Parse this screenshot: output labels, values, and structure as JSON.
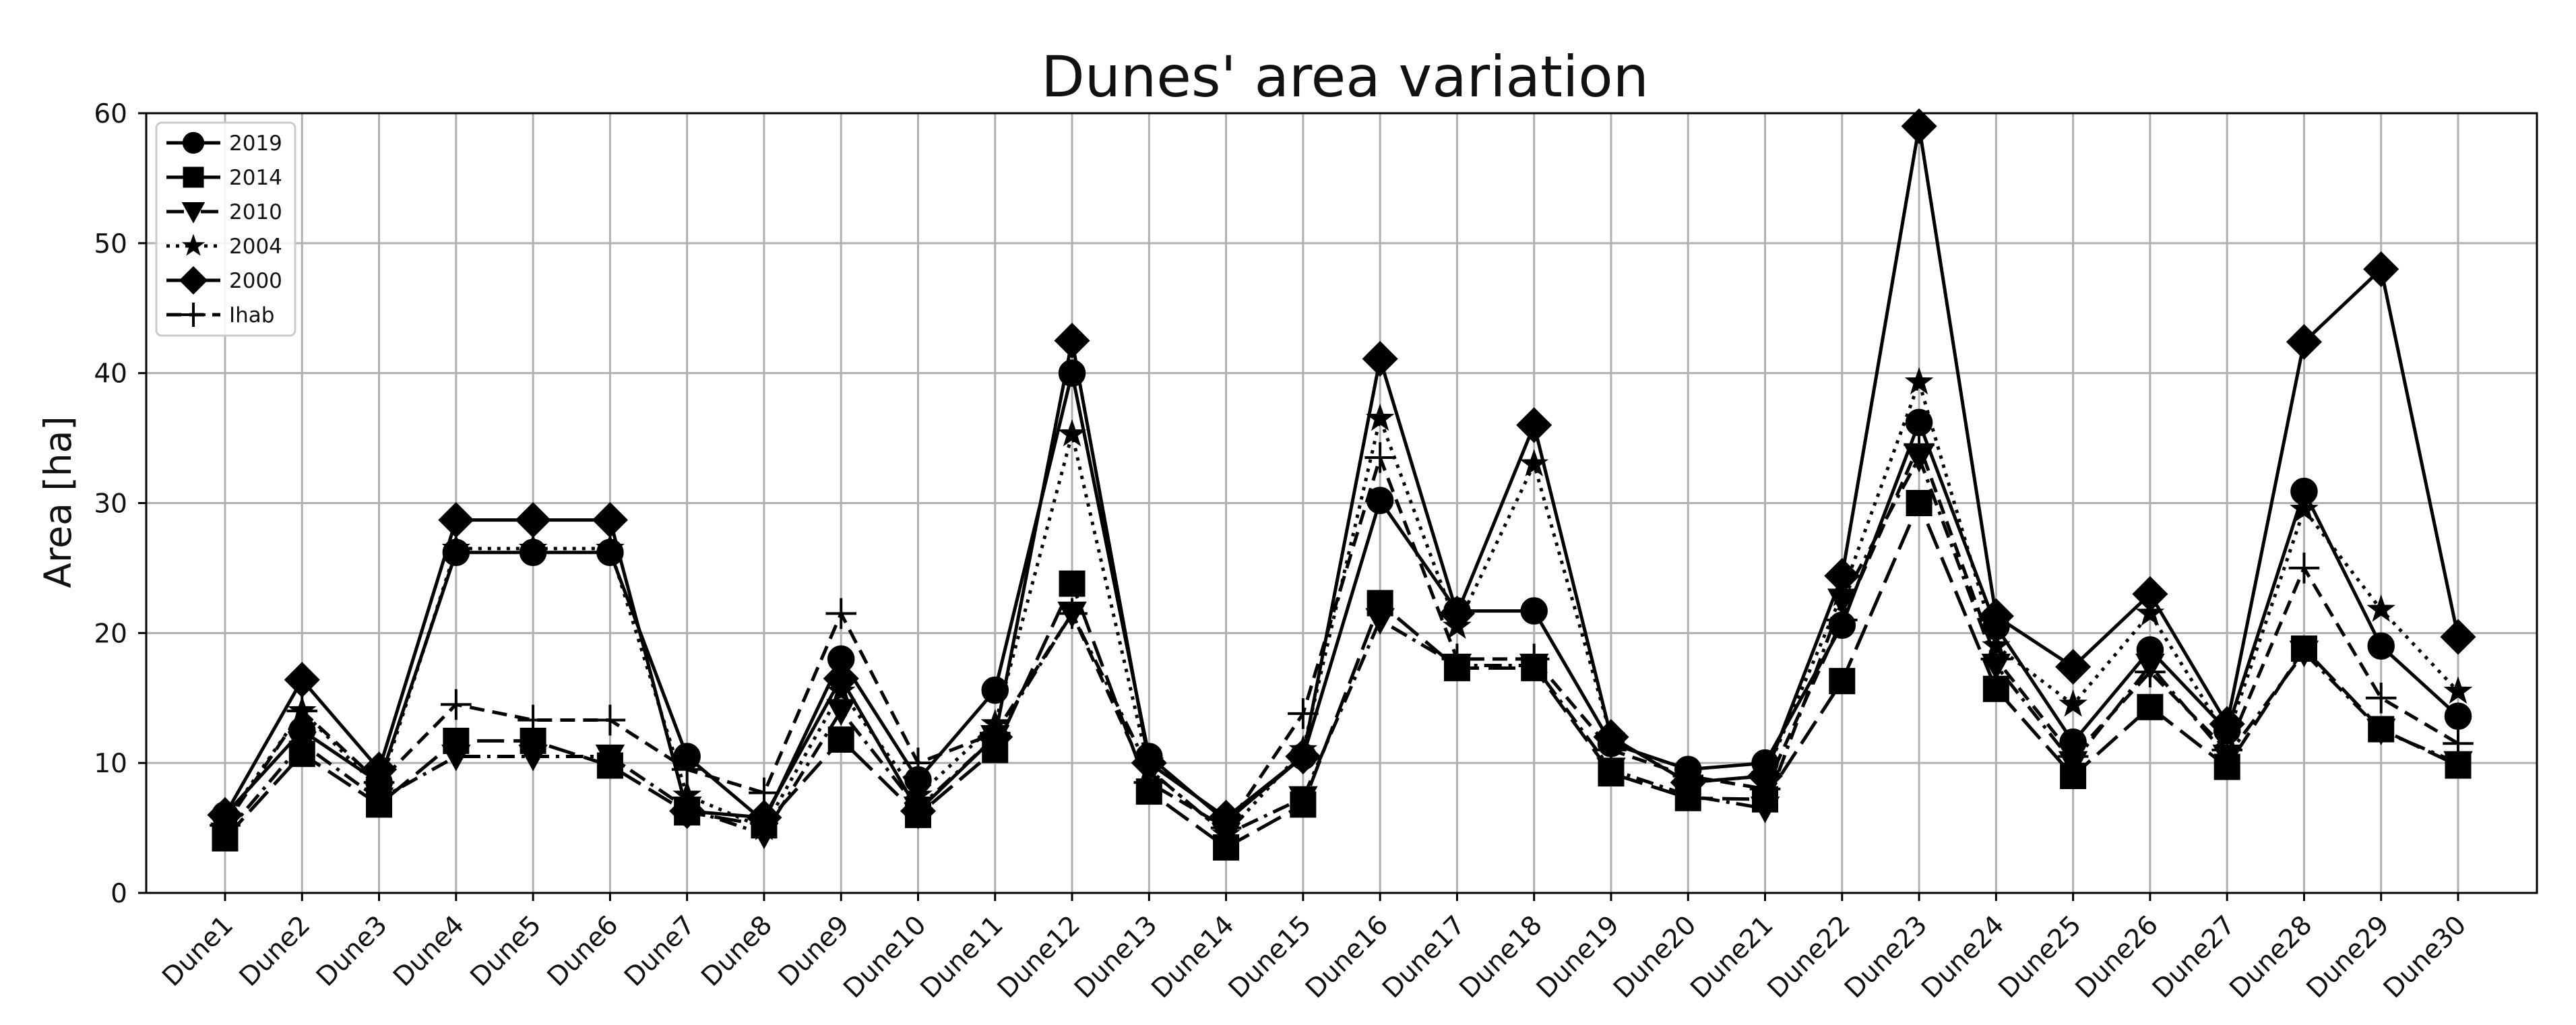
{
  "chart_data": {
    "type": "line",
    "title": "Dunes' area variation",
    "xlabel": "",
    "ylabel": "Area [ha]",
    "ylim": [
      0,
      60
    ],
    "yticks": [
      0,
      10,
      20,
      30,
      40,
      50,
      60
    ],
    "grid": true,
    "legend_position": "top-left",
    "categories": [
      "Dune1",
      "Dune2",
      "Dune3",
      "Dune4",
      "Dune5",
      "Dune6",
      "Dune7",
      "Dune8",
      "Dune9",
      "Dune10",
      "Dune11",
      "Dune12",
      "Dune13",
      "Dune14",
      "Dune15",
      "Dune16",
      "Dune17",
      "Dune18",
      "Dune19",
      "Dune20",
      "Dune21",
      "Dune22",
      "Dune23",
      "Dune24",
      "Dune25",
      "Dune26",
      "Dune27",
      "Dune28",
      "Dune29",
      "Dune30"
    ],
    "series": [
      {
        "name": "2019",
        "marker": "circle",
        "dash": "solid",
        "color": "#000000",
        "values": [
          6,
          12.5,
          8.5,
          26.2,
          26.2,
          26.2,
          10.5,
          5.5,
          18,
          8.7,
          15.6,
          40,
          10.5,
          5.5,
          10.5,
          30.2,
          21.7,
          21.7,
          11.5,
          9.5,
          10,
          20.6,
          36.2,
          20.5,
          11.6,
          18.7,
          12.5,
          30.9,
          19,
          13.6
        ]
      },
      {
        "name": "2014",
        "marker": "square",
        "dash": "long-dash",
        "color": "#000000",
        "values": [
          4.2,
          10.7,
          6.8,
          11.7,
          11.7,
          9.8,
          6.2,
          5.2,
          11.8,
          6,
          11,
          23.8,
          7.8,
          3.5,
          6.8,
          22.3,
          17.3,
          17.3,
          9.2,
          7.3,
          7.2,
          16.3,
          30,
          15.7,
          9,
          14.3,
          9.7,
          18.8,
          12.6,
          9.8
        ]
      },
      {
        "name": "2010",
        "marker": "triangle-down",
        "dash": "dash-dot",
        "color": "#000000",
        "values": [
          4.5,
          11.5,
          7.2,
          10.5,
          10.5,
          10.5,
          6.5,
          4.5,
          14,
          6.5,
          12,
          21.5,
          9.5,
          4.5,
          7.3,
          21,
          17.5,
          17.5,
          9.5,
          7.5,
          6.5,
          22.5,
          33.5,
          17.5,
          10,
          17.5,
          10.5,
          18.5,
          12.5,
          10
        ]
      },
      {
        "name": "2004",
        "marker": "star",
        "dash": "dotted",
        "color": "#000000",
        "values": [
          5.5,
          14,
          8,
          26.5,
          26.5,
          26.5,
          7.5,
          5,
          15.5,
          7.5,
          13,
          35.3,
          9.5,
          4.5,
          11,
          36.5,
          20.5,
          33,
          12,
          8.5,
          9,
          23,
          39.3,
          19,
          14.5,
          21.5,
          12,
          29.5,
          21.8,
          15.5
        ]
      },
      {
        "name": "2000",
        "marker": "diamond",
        "dash": "solid",
        "color": "#000000",
        "values": [
          6,
          16.4,
          9.5,
          28.7,
          28.7,
          28.7,
          6.3,
          5.8,
          16.5,
          6.3,
          12,
          42.5,
          10,
          5.8,
          10.5,
          41.1,
          21.5,
          36,
          12,
          8.5,
          9,
          24.4,
          59,
          21.3,
          17.4,
          23,
          13,
          42.4,
          48,
          19.7
        ]
      },
      {
        "name": "Ihab",
        "marker": "plus",
        "dash": "dashed",
        "color": "#000000",
        "values": [
          5.2,
          14,
          8.5,
          14.5,
          13.3,
          13.3,
          9.5,
          7.7,
          21.5,
          10,
          12.3,
          21.5,
          8.5,
          5,
          13.8,
          33.5,
          18,
          18,
          11,
          9,
          8,
          21,
          34.5,
          18,
          10.5,
          17,
          11,
          25,
          15,
          11.5
        ]
      }
    ]
  }
}
